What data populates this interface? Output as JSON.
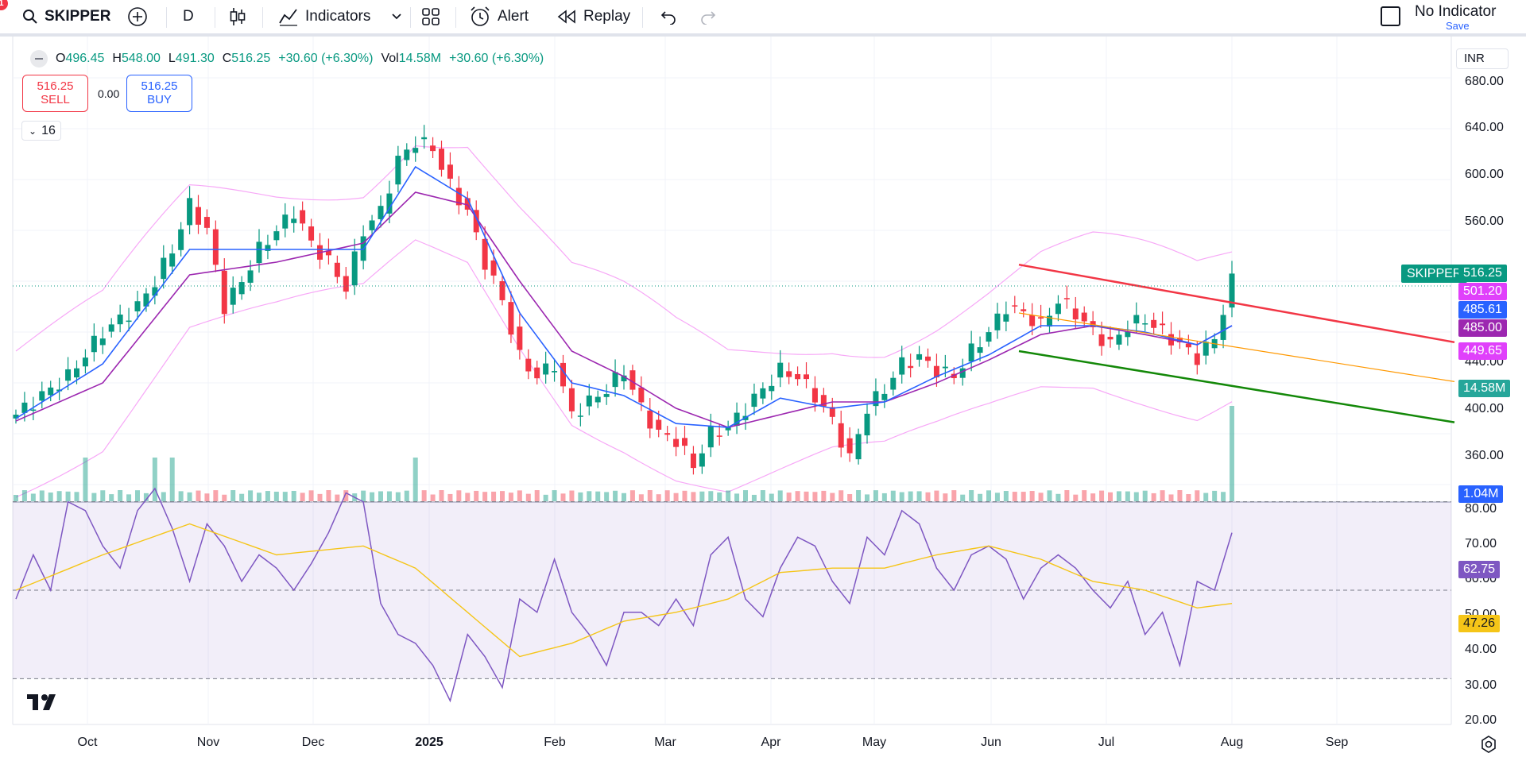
{
  "toolbar": {
    "notification_count": "1",
    "symbol": "SKIPPER",
    "interval": "D",
    "indicators_label": "Indicators",
    "alert_label": "Alert",
    "replay_label": "Replay",
    "template_title": "No Indicator",
    "template_save": "Save"
  },
  "legend": {
    "open_key": "O",
    "open": "496.45",
    "high_key": "H",
    "high": "548.00",
    "low_key": "L",
    "low": "491.30",
    "close_key": "C",
    "close": "516.25",
    "change": "+30.60 (+6.30%)",
    "vol_key": "Vol",
    "vol": "14.58M",
    "vol_change": "+30.60 (+6.30%)"
  },
  "trading": {
    "sell_price": "516.25",
    "sell_label": "SELL",
    "spread": "0.00",
    "buy_price": "516.25",
    "buy_label": "BUY",
    "collapsed_count": "16"
  },
  "currency": "INR",
  "price_axis": [
    "680.00",
    "640.00",
    "600.00",
    "560.00",
    "440.00",
    "400.00",
    "360.00"
  ],
  "rsi_axis": [
    "80.00",
    "70.00",
    "60.00",
    "50.00",
    "40.00",
    "30.00",
    "20.00"
  ],
  "badges": {
    "symbol_tag": "SKIPPER",
    "last_price": "516.25",
    "upper_band": "501.20",
    "ema": "485.61",
    "middle_band": "485.00",
    "lower_band": "449.65",
    "volume": "14.58M",
    "volume_ma": "1.04M",
    "rsi": "62.75",
    "rsi_ma": "47.26"
  },
  "time_axis": [
    "Oct",
    "Nov",
    "Dec",
    "2025",
    "Feb",
    "Mar",
    "Apr",
    "May",
    "Jun",
    "Jul",
    "Aug",
    "Sep"
  ],
  "colors": {
    "up": "#089981",
    "down": "#f23645",
    "ema": "#2962ff",
    "sma": "#9c27b0",
    "band": "#f7a8f7",
    "rsi": "#7e57c2",
    "rsi_ma": "#f5c518",
    "channel_top": "#f23645",
    "channel_mid": "#ff9800",
    "channel_bottom": "#138808"
  },
  "chart_data": {
    "type": "candlestick",
    "symbol": "SKIPPER",
    "interval": "D",
    "price_range": [
      340,
      690
    ],
    "rsi_range": [
      20,
      80
    ],
    "rsi_levels": [
      70,
      50,
      30
    ],
    "series": [
      {
        "name": "price",
        "points": [
          [
            0,
            415
          ],
          [
            6,
            445
          ],
          [
            10,
            480
          ],
          [
            14,
            500
          ],
          [
            16,
            520
          ],
          [
            18,
            545
          ],
          [
            20,
            580
          ],
          [
            22,
            560
          ],
          [
            24,
            500
          ],
          [
            26,
            520
          ],
          [
            28,
            545
          ],
          [
            30,
            560
          ],
          [
            32,
            575
          ],
          [
            34,
            550
          ],
          [
            36,
            535
          ],
          [
            38,
            515
          ],
          [
            40,
            560
          ],
          [
            42,
            575
          ],
          [
            44,
            615
          ],
          [
            46,
            630
          ],
          [
            48,
            625
          ],
          [
            50,
            595
          ],
          [
            52,
            575
          ],
          [
            54,
            535
          ],
          [
            56,
            505
          ],
          [
            58,
            460
          ],
          [
            60,
            445
          ],
          [
            62,
            455
          ],
          [
            64,
            415
          ],
          [
            66,
            425
          ],
          [
            68,
            435
          ],
          [
            70,
            450
          ],
          [
            72,
            420
          ],
          [
            74,
            400
          ],
          [
            76,
            395
          ],
          [
            78,
            375
          ],
          [
            80,
            400
          ],
          [
            82,
            405
          ],
          [
            84,
            420
          ],
          [
            86,
            435
          ],
          [
            88,
            450
          ],
          [
            90,
            445
          ],
          [
            92,
            430
          ],
          [
            94,
            410
          ],
          [
            96,
            380
          ],
          [
            98,
            420
          ],
          [
            100,
            435
          ],
          [
            102,
            455
          ],
          [
            104,
            460
          ],
          [
            106,
            450
          ],
          [
            108,
            445
          ],
          [
            110,
            465
          ],
          [
            112,
            480
          ],
          [
            114,
            500
          ],
          [
            116,
            495
          ],
          [
            118,
            485
          ],
          [
            120,
            505
          ],
          [
            122,
            495
          ],
          [
            124,
            480
          ],
          [
            126,
            470
          ],
          [
            128,
            485
          ],
          [
            130,
            490
          ],
          [
            132,
            480
          ],
          [
            134,
            470
          ],
          [
            136,
            460
          ],
          [
            138,
            475
          ],
          [
            140,
            520
          ]
        ]
      },
      {
        "name": "EMA",
        "points": [
          [
            0,
            412
          ],
          [
            10,
            455
          ],
          [
            20,
            545
          ],
          [
            30,
            545
          ],
          [
            40,
            545
          ],
          [
            46,
            610
          ],
          [
            52,
            585
          ],
          [
            58,
            495
          ],
          [
            64,
            440
          ],
          [
            70,
            430
          ],
          [
            76,
            408
          ],
          [
            82,
            405
          ],
          [
            88,
            428
          ],
          [
            94,
            420
          ],
          [
            100,
            425
          ],
          [
            106,
            445
          ],
          [
            112,
            462
          ],
          [
            118,
            485
          ],
          [
            124,
            485
          ],
          [
            130,
            480
          ],
          [
            136,
            470
          ],
          [
            140,
            485
          ]
        ]
      },
      {
        "name": "SMA",
        "points": [
          [
            0,
            410
          ],
          [
            10,
            440
          ],
          [
            20,
            525
          ],
          [
            30,
            535
          ],
          [
            40,
            550
          ],
          [
            46,
            590
          ],
          [
            52,
            580
          ],
          [
            58,
            520
          ],
          [
            64,
            465
          ],
          [
            70,
            445
          ],
          [
            76,
            420
          ],
          [
            82,
            405
          ],
          [
            88,
            415
          ],
          [
            94,
            425
          ],
          [
            100,
            425
          ],
          [
            106,
            440
          ],
          [
            112,
            458
          ],
          [
            118,
            478
          ],
          [
            124,
            485
          ],
          [
            130,
            478
          ],
          [
            136,
            470
          ],
          [
            140,
            485
          ]
        ]
      },
      {
        "name": "RSI",
        "points": [
          [
            0,
            48
          ],
          [
            2,
            58
          ],
          [
            4,
            50
          ],
          [
            6,
            70
          ],
          [
            8,
            68
          ],
          [
            10,
            60
          ],
          [
            12,
            55
          ],
          [
            14,
            68
          ],
          [
            16,
            73
          ],
          [
            18,
            64
          ],
          [
            20,
            52
          ],
          [
            22,
            65
          ],
          [
            24,
            60
          ],
          [
            26,
            52
          ],
          [
            28,
            58
          ],
          [
            30,
            55
          ],
          [
            32,
            50
          ],
          [
            34,
            56
          ],
          [
            36,
            63
          ],
          [
            38,
            72
          ],
          [
            40,
            70
          ],
          [
            42,
            47
          ],
          [
            44,
            40
          ],
          [
            46,
            38
          ],
          [
            48,
            33
          ],
          [
            50,
            25
          ],
          [
            52,
            40
          ],
          [
            54,
            35
          ],
          [
            56,
            28
          ],
          [
            58,
            48
          ],
          [
            60,
            45
          ],
          [
            62,
            57
          ],
          [
            64,
            45
          ],
          [
            66,
            40
          ],
          [
            68,
            33
          ],
          [
            70,
            45
          ],
          [
            72,
            45
          ],
          [
            74,
            42
          ],
          [
            76,
            48
          ],
          [
            78,
            42
          ],
          [
            80,
            58
          ],
          [
            82,
            62
          ],
          [
            84,
            48
          ],
          [
            86,
            44
          ],
          [
            88,
            55
          ],
          [
            90,
            62
          ],
          [
            92,
            60
          ],
          [
            94,
            52
          ],
          [
            96,
            47
          ],
          [
            98,
            62
          ],
          [
            100,
            58
          ],
          [
            102,
            68
          ],
          [
            104,
            65
          ],
          [
            106,
            55
          ],
          [
            108,
            50
          ],
          [
            110,
            58
          ],
          [
            112,
            60
          ],
          [
            114,
            57
          ],
          [
            116,
            48
          ],
          [
            118,
            55
          ],
          [
            120,
            58
          ],
          [
            122,
            55
          ],
          [
            124,
            50
          ],
          [
            126,
            46
          ],
          [
            128,
            52
          ],
          [
            130,
            40
          ],
          [
            132,
            45
          ],
          [
            134,
            33
          ],
          [
            136,
            52
          ],
          [
            138,
            50
          ],
          [
            140,
            63
          ]
        ]
      },
      {
        "name": "RSI-MA",
        "points": [
          [
            0,
            50
          ],
          [
            10,
            58
          ],
          [
            20,
            65
          ],
          [
            30,
            58
          ],
          [
            40,
            60
          ],
          [
            46,
            55
          ],
          [
            52,
            45
          ],
          [
            58,
            35
          ],
          [
            64,
            38
          ],
          [
            70,
            43
          ],
          [
            76,
            45
          ],
          [
            82,
            48
          ],
          [
            88,
            54
          ],
          [
            94,
            55
          ],
          [
            100,
            55
          ],
          [
            106,
            58
          ],
          [
            112,
            60
          ],
          [
            118,
            57
          ],
          [
            124,
            52
          ],
          [
            130,
            50
          ],
          [
            136,
            46
          ],
          [
            140,
            47
          ]
        ]
      }
    ]
  }
}
